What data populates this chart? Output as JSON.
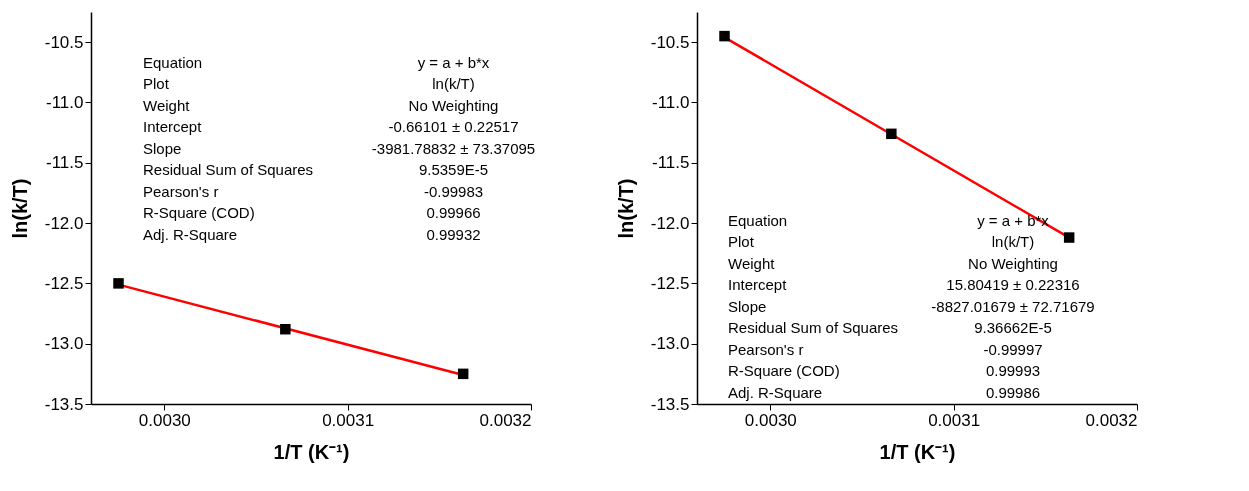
{
  "chart_data": [
    {
      "type": "scatter",
      "xlabel": "1/T (K⁻¹)",
      "ylabel": "ln(k/T)",
      "xlim": [
        0.00296,
        0.0032
      ],
      "ylim": [
        -13.5,
        -10.25
      ],
      "xticks": [
        {
          "value": 0.003,
          "label": "0.0030"
        },
        {
          "value": 0.0031,
          "label": "0.0031"
        },
        {
          "value": 0.0032,
          "label": "0.0032"
        }
      ],
      "yticks": [
        {
          "value": -13.5,
          "label": "-13.5"
        },
        {
          "value": -13,
          "label": "-13.0"
        },
        {
          "value": -12.5,
          "label": "-12.5"
        },
        {
          "value": -12,
          "label": "-12.0"
        },
        {
          "value": -11.5,
          "label": "-11.5"
        },
        {
          "value": -11,
          "label": "-11.0"
        },
        {
          "value": -10.5,
          "label": "-10.5"
        }
      ],
      "grid": false,
      "series": [
        {
          "type": "line",
          "color": "#ff0000",
          "x": [
            0.002975,
            0.003163
          ],
          "values": [
            -12.51,
            -13.26
          ],
          "marker": "none",
          "line_style": "solid"
        },
        {
          "color": "#000000",
          "x": [
            0.002975,
            0.003066,
            0.003163
          ],
          "values": [
            -12.5,
            -12.88,
            -13.25
          ],
          "marker": "square"
        }
      ],
      "annotations": [
        "Equation",
        "y = a + b*x",
        "Plot",
        "ln(k/T)",
        "Weight",
        "No Weighting",
        "Intercept",
        "-0.66101 ± 0.22517",
        "Slope",
        "-3981.78832 ± 73.37095",
        "Residual Sum of Squares",
        "9.5359E-5",
        "Pearson's r",
        "-0.99983",
        "R-Square (COD)",
        "0.99966",
        "Adj. R-Square",
        "0.99932"
      ]
    },
    {
      "type": "scatter",
      "xlabel": "1/T (K⁻¹)",
      "ylabel": "ln(k/T)",
      "xlim": [
        0.00296,
        0.0032
      ],
      "ylim": [
        -13.5,
        -10.25
      ],
      "xticks": [
        {
          "value": 0.003,
          "label": "0.0030"
        },
        {
          "value": 0.0031,
          "label": "0.0031"
        },
        {
          "value": 0.0032,
          "label": "0.0032"
        }
      ],
      "yticks": [
        {
          "value": -13.5,
          "label": "-13.5"
        },
        {
          "value": -13,
          "label": "-13.0"
        },
        {
          "value": -12.5,
          "label": "-12.5"
        },
        {
          "value": -12,
          "label": "-12.0"
        },
        {
          "value": -11.5,
          "label": "-11.5"
        },
        {
          "value": -11,
          "label": "-11.0"
        },
        {
          "value": -10.5,
          "label": "-10.5"
        }
      ],
      "grid": false,
      "series": [
        {
          "type": "line",
          "color": "#ff0000",
          "x": [
            0.002975,
            0.003163
          ],
          "values": [
            -10.46,
            -12.12
          ],
          "marker": "none",
          "line_style": "solid"
        },
        {
          "color": "#000000",
          "x": [
            0.002975,
            0.003066,
            0.003163
          ],
          "values": [
            -10.45,
            -11.26,
            -12.12
          ],
          "marker": "square"
        }
      ],
      "annotations": [
        "Equation",
        "y = a + b*x",
        "Plot",
        "ln(k/T)",
        "Weight",
        "No Weighting",
        "Intercept",
        "15.80419 ± 0.22316",
        "Slope",
        "-8827.01679 ± 72.71679",
        "Residual Sum of Squares",
        "9.36662E-5",
        "Pearson's r",
        "-0.99997",
        "R-Square (COD)",
        "0.99993",
        "Adj. R-Square",
        "0.99986"
      ]
    }
  ]
}
